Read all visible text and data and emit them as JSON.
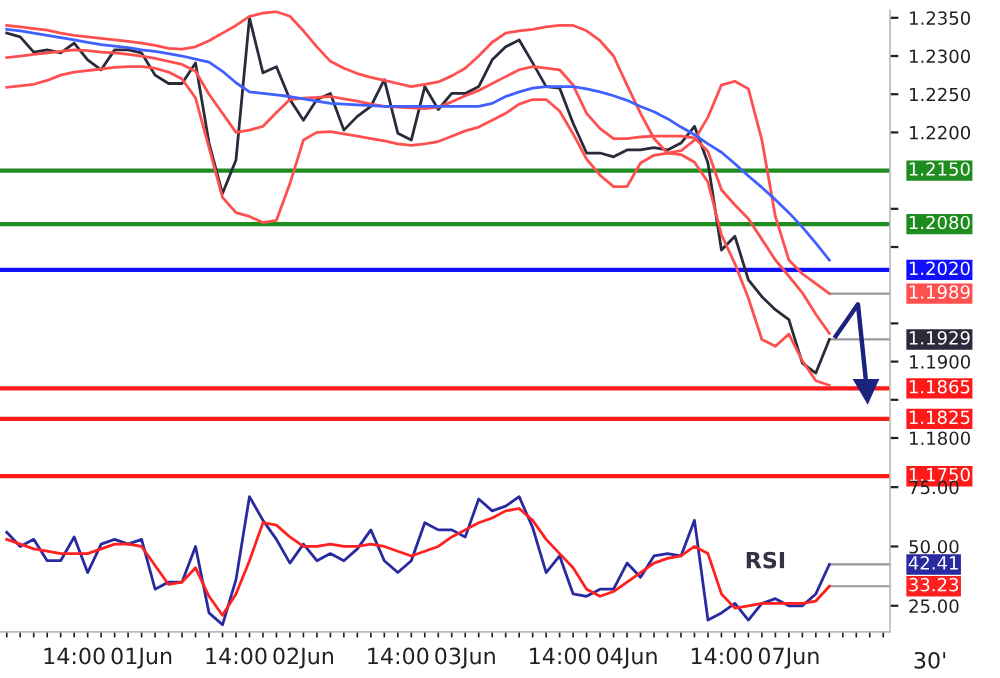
{
  "chart_data": [
    {
      "type": "line",
      "ylim": [
        1.1745,
        1.236
      ],
      "tick_labels": "y",
      "categories": [
        null,
        null,
        null,
        null,
        null,
        null,
        null,
        null,
        null,
        null,
        null,
        null,
        null,
        null,
        null,
        null,
        null,
        null,
        null,
        null,
        null,
        null,
        null,
        null,
        null,
        null,
        null,
        null,
        null,
        null,
        null,
        null,
        null,
        null,
        null,
        null,
        null,
        null,
        null,
        null,
        null,
        null,
        null,
        null,
        null,
        null,
        null,
        null,
        null,
        null,
        null,
        null,
        null,
        null,
        null,
        null,
        null,
        null,
        null,
        null,
        null,
        null,
        null,
        null,
        null,
        null
      ],
      "yticks": [
        {
          "value": 1.235,
          "label": "1.2350"
        },
        {
          "value": 1.23,
          "label": "1.2300"
        },
        {
          "value": 1.225,
          "label": "1.2250"
        },
        {
          "value": 1.22,
          "label": "1.2200"
        },
        {
          "value": 1.21,
          "label": null
        },
        {
          "value": 1.205,
          "label": null
        },
        {
          "value": 1.195,
          "label": null
        },
        {
          "value": 1.19,
          "label": "1.1900"
        },
        {
          "value": 1.185,
          "label": null
        },
        {
          "value": 1.18,
          "label": "1.1800"
        }
      ],
      "series": [
        {
          "color": "#2a2a3a",
          "value_labels": [
            null,
            null,
            null,
            null,
            null,
            null,
            null,
            null,
            null,
            null,
            null,
            null,
            null,
            null,
            null,
            null,
            null,
            null,
            null,
            null,
            null,
            null,
            null,
            null,
            null,
            null,
            null,
            null,
            null,
            null,
            null,
            null,
            null,
            null,
            null,
            null,
            null,
            null,
            null,
            null,
            null,
            null,
            null,
            null,
            null,
            null,
            null,
            null,
            null,
            null,
            null,
            null,
            null,
            null,
            null,
            null,
            null,
            null,
            null,
            null,
            null,
            "1.1929",
            null,
            null,
            null,
            null
          ],
          "values": [
            1.233,
            1.2325,
            1.2305,
            1.2308,
            1.2304,
            1.2317,
            1.2295,
            1.2282,
            1.2308,
            1.2308,
            1.2304,
            1.2275,
            1.2264,
            1.2264,
            1.2291,
            1.2186,
            1.212,
            1.2164,
            1.235,
            1.2278,
            1.2286,
            1.2243,
            1.2216,
            1.2243,
            1.2251,
            1.2203,
            1.2221,
            1.2234,
            1.2269,
            1.2199,
            1.219,
            1.226,
            1.223,
            1.2251,
            1.2251,
            1.226,
            1.2295,
            1.2312,
            1.2321,
            1.2291,
            1.226,
            1.2258,
            1.2212,
            1.2173,
            1.2173,
            1.2168,
            1.2177,
            1.2177,
            1.218,
            1.2177,
            1.2186,
            1.2208,
            1.216,
            1.2046,
            1.2064,
            1.2007,
            1.1985,
            1.1968,
            1.1955,
            1.1898,
            1.1885,
            1.1929,
            null,
            null,
            null,
            null
          ]
        },
        {
          "color": "#ff5050",
          "value_labels": [
            null,
            null,
            null,
            null,
            null,
            null,
            null,
            null,
            null,
            null,
            null,
            null,
            null,
            null,
            null,
            null,
            null,
            null,
            null,
            null,
            null,
            null,
            null,
            null,
            null,
            null,
            null,
            null,
            null,
            null,
            null,
            null,
            null,
            null,
            null,
            null,
            null,
            null,
            null,
            null,
            null,
            null,
            null,
            null,
            null,
            null,
            null,
            null,
            null,
            null,
            null,
            null,
            null,
            null,
            null,
            null,
            null,
            null,
            null,
            null,
            null,
            "1.1989",
            null,
            null,
            null,
            null
          ],
          "values": [
            1.234,
            1.2338,
            1.2336,
            1.2334,
            1.233,
            1.2327,
            1.2325,
            1.2323,
            1.2321,
            1.2319,
            1.2317,
            1.2314,
            1.231,
            1.2309,
            1.2312,
            1.232,
            1.233,
            1.234,
            1.2352,
            1.2356,
            1.2358,
            1.2352,
            1.2333,
            1.2312,
            1.2293,
            1.2284,
            1.2277,
            1.2272,
            1.2268,
            1.2264,
            1.226,
            1.2263,
            1.2266,
            1.2274,
            1.2284,
            1.23,
            1.2318,
            1.233,
            1.2333,
            1.2335,
            1.2338,
            1.234,
            1.234,
            1.2333,
            1.232,
            1.23,
            1.2262,
            1.2225,
            1.2192,
            1.2173,
            1.2176,
            1.219,
            1.222,
            1.2262,
            1.2267,
            1.2257,
            1.219,
            1.209,
            1.2033,
            1.2015,
            1.2002,
            1.1989,
            null,
            null,
            null,
            null
          ]
        },
        {
          "color": "#ff5050",
          "values": [
            1.2298,
            1.23,
            1.2302,
            1.2304,
            1.2306,
            1.2308,
            1.2307,
            1.2305,
            1.2304,
            1.2302,
            1.23,
            1.2297,
            1.2293,
            1.2289,
            1.228,
            1.225,
            1.2225,
            1.22,
            1.2203,
            1.2208,
            1.2226,
            1.2243,
            1.2245,
            1.2246,
            1.2247,
            1.2244,
            1.2241,
            1.2237,
            1.2234,
            1.2233,
            1.2232,
            1.2231,
            1.2233,
            1.224,
            1.2248,
            1.2255,
            1.2264,
            1.2273,
            1.2282,
            1.2286,
            1.2284,
            1.2282,
            1.2262,
            1.2225,
            1.2205,
            1.2192,
            1.2192,
            1.2194,
            1.2195,
            1.2195,
            1.2195,
            1.2193,
            1.2175,
            1.2125,
            1.2105,
            1.2087,
            1.206,
            1.2033,
            1.2012,
            1.199,
            1.1962,
            1.1937,
            null,
            null,
            null,
            null
          ]
        },
        {
          "color": "#ff5050",
          "values": [
            1.2259,
            1.2261,
            1.2263,
            1.2268,
            1.2275,
            1.2279,
            1.2281,
            1.2283,
            1.2285,
            1.2286,
            1.2286,
            1.2284,
            1.2279,
            1.227,
            1.2245,
            1.218,
            1.2115,
            1.2095,
            1.209,
            1.2082,
            1.2085,
            1.2133,
            1.219,
            1.22,
            1.2201,
            1.2198,
            1.2195,
            1.2192,
            1.2189,
            1.2185,
            1.2183,
            1.2185,
            1.2188,
            1.2195,
            1.2202,
            1.2207,
            1.2216,
            1.2225,
            1.2237,
            1.2243,
            1.2243,
            1.2228,
            1.2198,
            1.2165,
            1.2144,
            1.2129,
            1.2129,
            1.216,
            1.217,
            1.2173,
            1.2171,
            1.2161,
            1.2135,
            1.2066,
            1.2028,
            1.1983,
            1.1929,
            1.192,
            1.1936,
            1.1901,
            1.1875,
            1.1869,
            null,
            null,
            null,
            null
          ]
        },
        {
          "color": "#4060ff",
          "values": [
            1.2335,
            1.2333,
            1.233,
            1.2327,
            1.2324,
            1.2321,
            1.2318,
            1.2315,
            1.2313,
            1.2311,
            1.2308,
            1.2306,
            1.2303,
            1.23,
            1.2296,
            1.2292,
            1.228,
            1.2265,
            1.2253,
            1.2251,
            1.2249,
            1.2247,
            1.2244,
            1.2241,
            1.2238,
            1.2237,
            1.2236,
            1.2235,
            1.2234,
            1.2234,
            1.2234,
            1.2234,
            1.2234,
            1.2234,
            1.2234,
            1.2234,
            1.2238,
            1.2247,
            1.2253,
            1.2258,
            1.226,
            1.226,
            1.226,
            1.2257,
            1.2253,
            1.2248,
            1.2242,
            1.2234,
            1.2227,
            1.2218,
            1.2207,
            1.2197,
            1.2185,
            1.2174,
            1.2159,
            1.2143,
            1.2128,
            1.2112,
            1.2095,
            1.2076,
            1.2055,
            1.2033,
            null,
            null,
            null,
            null
          ]
        }
      ],
      "ref_lines": [
        {
          "axis": "y",
          "value": 1.215,
          "label": "1.2150",
          "color": "#1e8c1e"
        },
        {
          "axis": "y",
          "value": 1.208,
          "label": "1.2080",
          "color": "#1e8c1e"
        },
        {
          "axis": "y",
          "value": 1.202,
          "label": "1.2020",
          "color": "#1010ff"
        },
        {
          "axis": "y",
          "value": 1.1865,
          "label": "1.1865",
          "color": "#ff1a1a"
        },
        {
          "axis": "y",
          "value": 1.1825,
          "label": "1.1825",
          "color": "#ff1a1a"
        },
        {
          "axis": "y",
          "value": 1.175,
          "label": "1.1750",
          "color": "#ff1a1a"
        }
      ]
    },
    {
      "type": "line",
      "ylim": [
        14,
        78
      ],
      "categories": [
        null,
        null,
        null,
        null,
        null,
        "14:00",
        null,
        null,
        null,
        null,
        "01Jun",
        null,
        null,
        null,
        null,
        null,
        null,
        "14:00",
        null,
        null,
        null,
        null,
        "02Jun",
        null,
        null,
        null,
        null,
        null,
        null,
        "14:00",
        null,
        null,
        null,
        null,
        "03Jun",
        null,
        null,
        null,
        null,
        null,
        null,
        "14:00",
        null,
        null,
        null,
        null,
        "04Jun",
        null,
        null,
        null,
        null,
        null,
        null,
        "14:00",
        null,
        null,
        null,
        null,
        "07Jun",
        null,
        null,
        null,
        null,
        null,
        null,
        null
      ],
      "yticks": [
        {
          "value": 25,
          "label": "25.00"
        },
        {
          "value": 50,
          "label": "50.00"
        },
        {
          "value": 75,
          "label": "75.00"
        }
      ],
      "series": [
        {
          "color": "#2a2aa0",
          "value_labels": [
            null,
            null,
            null,
            null,
            null,
            null,
            null,
            null,
            null,
            null,
            null,
            null,
            null,
            null,
            null,
            null,
            null,
            null,
            null,
            null,
            null,
            null,
            null,
            null,
            null,
            null,
            null,
            null,
            null,
            null,
            null,
            null,
            null,
            null,
            null,
            null,
            null,
            null,
            null,
            null,
            null,
            null,
            null,
            null,
            null,
            null,
            null,
            null,
            null,
            null,
            null,
            null,
            null,
            null,
            null,
            null,
            null,
            null,
            null,
            null,
            null,
            "42.41",
            null,
            null,
            null,
            null
          ],
          "values": [
            56,
            50,
            53,
            44,
            44,
            54,
            39,
            51,
            53,
            51,
            53,
            32,
            35,
            35,
            50,
            22,
            17,
            36,
            71,
            61,
            53,
            43,
            51,
            44,
            47,
            44,
            49,
            57,
            44,
            39,
            44,
            60,
            57,
            57,
            54,
            70,
            65,
            67,
            71,
            58,
            39,
            46,
            30,
            29,
            32,
            32,
            43,
            37,
            46,
            47,
            46,
            61,
            19,
            22,
            26,
            19,
            26,
            28,
            25,
            25,
            30,
            42.41,
            null,
            null,
            null,
            null
          ]
        },
        {
          "color": "#ff2020",
          "value_labels": [
            null,
            null,
            null,
            null,
            null,
            null,
            null,
            null,
            null,
            null,
            null,
            null,
            null,
            null,
            null,
            null,
            null,
            null,
            null,
            null,
            null,
            null,
            null,
            null,
            null,
            null,
            null,
            null,
            null,
            null,
            null,
            null,
            null,
            null,
            null,
            null,
            null,
            null,
            null,
            null,
            null,
            null,
            null,
            null,
            null,
            null,
            null,
            null,
            null,
            null,
            null,
            null,
            null,
            null,
            null,
            null,
            null,
            null,
            null,
            null,
            null,
            "33.23",
            null,
            null,
            null,
            null
          ],
          "values": [
            53,
            51,
            49,
            48,
            47,
            47,
            47,
            49,
            51,
            51,
            50,
            42,
            34,
            35,
            41,
            29,
            21,
            30,
            44,
            60,
            59,
            54,
            50,
            50,
            51,
            50,
            50,
            51,
            50,
            48,
            46,
            48,
            50,
            54,
            57,
            60,
            62,
            65,
            66,
            61,
            53,
            47,
            41,
            32,
            29,
            31,
            35,
            39,
            43,
            45,
            46,
            50,
            47,
            30,
            24,
            25,
            26,
            26,
            26,
            26,
            27,
            33.23,
            null,
            null,
            null,
            null
          ]
        }
      ],
      "annotations": [
        "RSI",
        "30'"
      ]
    }
  ]
}
